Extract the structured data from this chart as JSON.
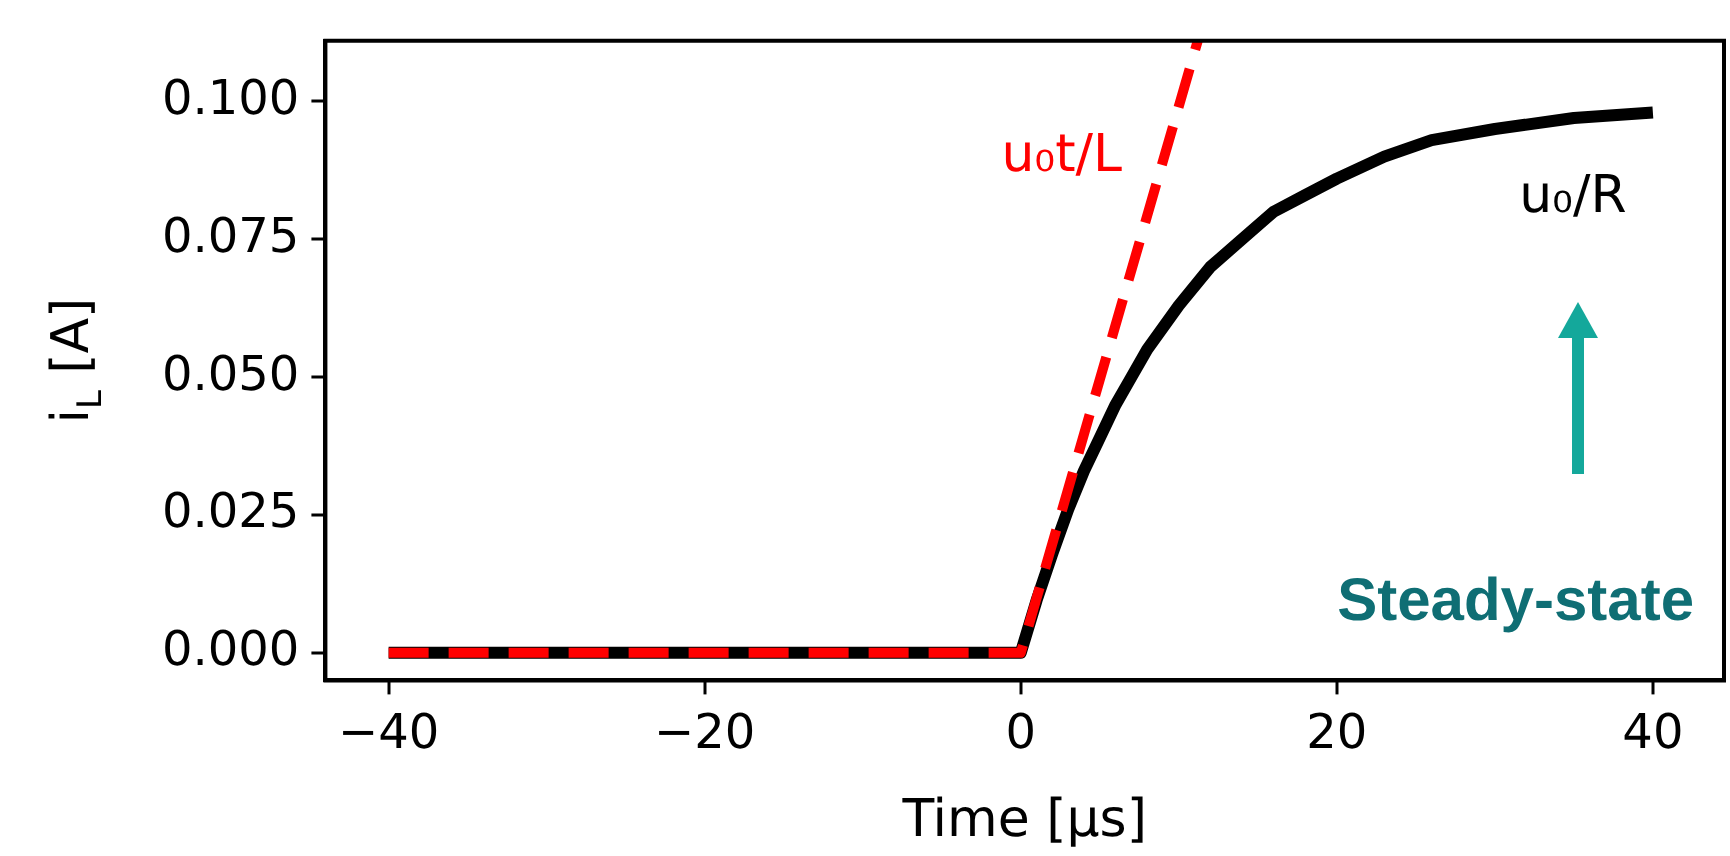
{
  "chart_data": {
    "type": "line",
    "xlabel": "Time [μs]",
    "ylabel": "i$_{L}$ [A]",
    "annotations": [
      "Steady-state"
    ],
    "xlim": [
      -44,
      44.5
    ],
    "ylim": [
      -0.005,
      0.111
    ],
    "xticks": [
      {
        "value": -40,
        "label": "−40"
      },
      {
        "value": -20,
        "label": "−20"
      },
      0,
      20,
      40
    ],
    "yticks": [
      {
        "value": 0,
        "label": "0.000"
      },
      {
        "value": 0.025,
        "label": "0.025"
      },
      {
        "value": 0.05,
        "label": "0.050"
      },
      {
        "value": 0.075,
        "label": "0.075"
      },
      {
        "value": 0.1,
        "label": "0.100"
      }
    ],
    "grid": false,
    "legend": false,
    "marker": "none",
    "series": [
      {
        "name": "u₀/R",
        "color": "#000000",
        "line_style": "solid",
        "x": [
          -40,
          0,
          1,
          2,
          3,
          4,
          5,
          6,
          7,
          8,
          9,
          10,
          12,
          14,
          16,
          18,
          20,
          23,
          26,
          30,
          35,
          40
        ],
        "values": [
          0,
          0,
          0.0095,
          0.018,
          0.026,
          0.033,
          0.039,
          0.045,
          0.05,
          0.055,
          0.059,
          0.063,
          0.07,
          0.075,
          0.08,
          0.083,
          0.086,
          0.09,
          0.093,
          0.095,
          0.097,
          0.098
        ]
      },
      {
        "name": "u₀t/L",
        "color": "#ff0000",
        "line_style": "dashed",
        "x": [
          -40,
          0,
          11.2
        ],
        "values": [
          0,
          0,
          0.111
        ]
      }
    ]
  }
}
